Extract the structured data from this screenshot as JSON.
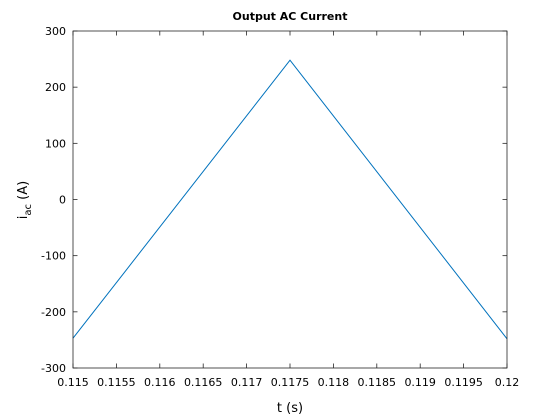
{
  "chart_data": {
    "type": "line",
    "title": "Output AC Current",
    "xlabel": "t (s)",
    "ylabel": {
      "base": "i",
      "sub": "ac",
      "unit": " (A)"
    },
    "xlim": [
      0.115,
      0.12
    ],
    "ylim": [
      -300,
      300
    ],
    "xticks": [
      0.115,
      0.1155,
      0.116,
      0.1165,
      0.117,
      0.1175,
      0.118,
      0.1185,
      0.119,
      0.1195,
      0.12
    ],
    "xtick_labels": [
      "0.115",
      "0.1155",
      "0.116",
      "0.1165",
      "0.117",
      "0.1175",
      "0.118",
      "0.1185",
      "0.119",
      "0.1195",
      "0.12"
    ],
    "yticks": [
      -300,
      -200,
      -100,
      0,
      100,
      200,
      300
    ],
    "ytick_labels": [
      "-300",
      "-200",
      "-100",
      "0",
      "100",
      "200",
      "300"
    ],
    "grid": false,
    "series": [
      {
        "name": "i_ac",
        "color": "#0072BD",
        "x": [
          0.115,
          0.1175,
          0.12
        ],
        "y": [
          -247,
          248,
          -248
        ]
      }
    ]
  }
}
